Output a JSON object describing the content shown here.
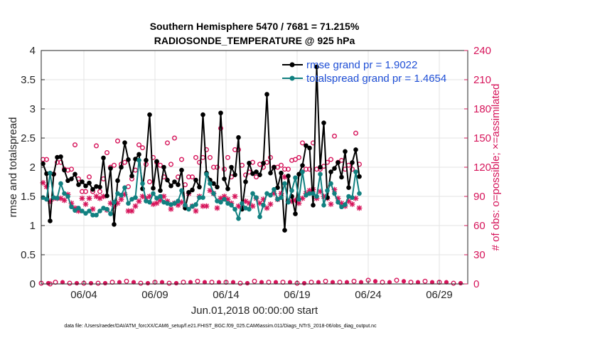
{
  "chart_data": {
    "type": "line",
    "title": "Southern Hemisphere 5470 / 7681 = 71.215%",
    "subtitle": "RADIOSONDE_TEMPERATURE @ 925 hPa",
    "xlabel": "Jun.01,2018 00:00:00 start",
    "ylabel": "rmse and totalspread",
    "y2label": "# of obs: o=possible; ×=assimilated",
    "footnote": "data file: /Users/raeder/DAI/ATM_forcXX/CAM6_setup/f.e21.FHIST_BGC.f09_025.CAM6assim.011/Diags_NTrS_2018-06/obs_diag_output.nc",
    "x_tick_labels": [
      "06/04",
      "06/09",
      "06/14",
      "06/19",
      "06/24",
      "06/29"
    ],
    "x_tick_days": [
      4,
      9,
      14,
      19,
      24,
      29
    ],
    "xlim": [
      1,
      31
    ],
    "ylim": [
      0,
      4
    ],
    "y_ticks": [
      "0",
      "0.5",
      "1",
      "1.5",
      "2",
      "2.5",
      "3",
      "3.5",
      "4"
    ],
    "y2lim": [
      0,
      240
    ],
    "y2_ticks": [
      "0",
      "30",
      "60",
      "90",
      "120",
      "150",
      "180",
      "210",
      "240"
    ],
    "legend_position": "top-right",
    "colors": {
      "rmse": "#000000",
      "spread": "#118080",
      "obs": "#d6145a"
    },
    "x_step_days": 0.25,
    "series": [
      {
        "name": "rmse grand pr = 1.9022",
        "color": "#000000",
        "values": [
          2.06,
          1.89,
          1.08,
          1.88,
          2.17,
          2.18,
          1.95,
          1.77,
          1.8,
          1.88,
          1.7,
          1.75,
          1.68,
          1.73,
          1.62,
          1.67,
          1.66,
          2.16,
          1.51,
          1.98,
          1.02,
          1.77,
          2.0,
          2.42,
          2.13,
          1.85,
          2.14,
          2.22,
          1.63,
          2.12,
          2.9,
          1.64,
          2.1,
          1.6,
          2.0,
          1.78,
          1.68,
          1.75,
          1.7,
          1.95,
          1.3,
          1.57,
          1.61,
          1.78,
          1.66,
          2.9,
          1.9,
          1.78,
          1.72,
          1.66,
          2.93,
          1.8,
          1.63,
          2.0,
          1.87,
          2.51,
          1.28,
          1.75,
          2.07,
          1.89,
          1.92,
          1.87,
          2.07,
          3.25,
          1.9,
          2.0,
          1.65,
          1.9,
          0.92,
          1.85,
          1.5,
          1.2,
          1.88,
          2.03,
          2.37,
          2.33,
          1.35,
          3.72,
          2.0,
          2.76,
          1.48,
          1.92,
          1.98,
          2.08,
          1.83,
          2.27,
          1.65,
          2.08,
          2.3,
          1.84
        ]
      },
      {
        "name": "totalspread grand pr = 1.4654",
        "color": "#118080",
        "values": [
          1.48,
          1.45,
          1.9,
          1.48,
          1.47,
          1.72,
          1.55,
          1.5,
          1.32,
          1.26,
          1.3,
          1.25,
          1.21,
          1.25,
          1.18,
          1.18,
          1.25,
          1.3,
          1.28,
          1.2,
          1.4,
          1.55,
          1.52,
          1.65,
          1.38,
          1.45,
          1.48,
          2.12,
          1.72,
          1.42,
          1.4,
          1.55,
          1.47,
          1.5,
          1.4,
          1.38,
          1.36,
          1.38,
          1.42,
          1.6,
          1.35,
          1.28,
          1.33,
          1.36,
          1.48,
          1.48,
          1.88,
          1.72,
          1.55,
          1.42,
          1.4,
          1.45,
          1.38,
          1.35,
          1.28,
          1.12,
          1.38,
          1.3,
          1.28,
          1.55,
          1.48,
          1.15,
          1.35,
          1.55,
          1.52,
          1.62,
          1.45,
          1.48,
          1.72,
          1.4,
          1.6,
          1.82,
          1.45,
          1.92,
          1.52,
          1.55,
          1.55,
          1.5,
          1.88,
          1.35,
          1.6,
          1.72,
          1.55,
          1.4,
          1.32,
          1.36,
          1.5,
          1.48,
          1.92,
          1.55
        ]
      }
    ],
    "possible_obs": {
      "name": "possible",
      "values": [
        128,
        128,
        0,
        113,
        125,
        125,
        118,
        117,
        118,
        143,
        108,
        95,
        95,
        110,
        95,
        142,
        95,
        108,
        135,
        120,
        122,
        147,
        123,
        125,
        100,
        108,
        117,
        143,
        140,
        123,
        105,
        130,
        125,
        122,
        110,
        145,
        123,
        150,
        110,
        128,
        102,
        110,
        110,
        130,
        125,
        130,
        138,
        130,
        120,
        120,
        160,
        118,
        130,
        110,
        138,
        138,
        122,
        112,
        115,
        125,
        110,
        123,
        120,
        125,
        130,
        120,
        120,
        122,
        118,
        118,
        127,
        128,
        130,
        145,
        118,
        118,
        145,
        118,
        118,
        121,
        125,
        128,
        152,
        125,
        127,
        118,
        122,
        118,
        155,
        123
      ]
    },
    "assimilated_obs": {
      "name": "assimilated",
      "values": [
        104,
        100,
        85,
        88,
        88,
        88,
        86,
        92,
        83,
        78,
        75,
        88,
        82,
        88,
        77,
        90,
        88,
        90,
        76,
        83,
        80,
        83,
        87,
        92,
        75,
        75,
        80,
        85,
        90,
        88,
        90,
        82,
        83,
        86,
        90,
        85,
        77,
        83,
        81,
        84,
        80,
        93,
        80,
        75,
        90,
        80,
        80,
        96,
        93,
        78,
        88,
        90,
        87,
        83,
        90,
        80,
        78,
        85,
        83,
        80,
        88,
        83,
        87,
        78,
        82,
        93,
        87,
        93,
        110,
        85,
        85,
        86,
        83,
        88,
        93,
        96,
        97,
        88,
        95,
        90,
        88,
        82,
        97,
        88,
        83,
        80,
        85,
        82,
        88,
        78
      ]
    },
    "low_possible_obs": {
      "values": [
        0,
        1,
        0,
        0,
        0,
        1,
        2,
        0,
        1,
        0,
        1,
        2,
        1,
        1,
        0,
        2,
        1,
        1,
        0,
        1,
        2,
        1,
        2,
        3,
        1,
        3,
        1,
        2,
        1,
        0
      ]
    },
    "low_assimilated_obs": {
      "values": [
        0,
        1,
        0,
        0,
        0,
        1,
        1,
        0,
        1,
        0,
        1,
        1,
        1,
        1,
        0,
        1,
        1,
        1,
        0,
        1,
        1,
        1,
        1,
        2,
        1,
        2,
        1,
        1,
        1,
        0
      ]
    }
  }
}
